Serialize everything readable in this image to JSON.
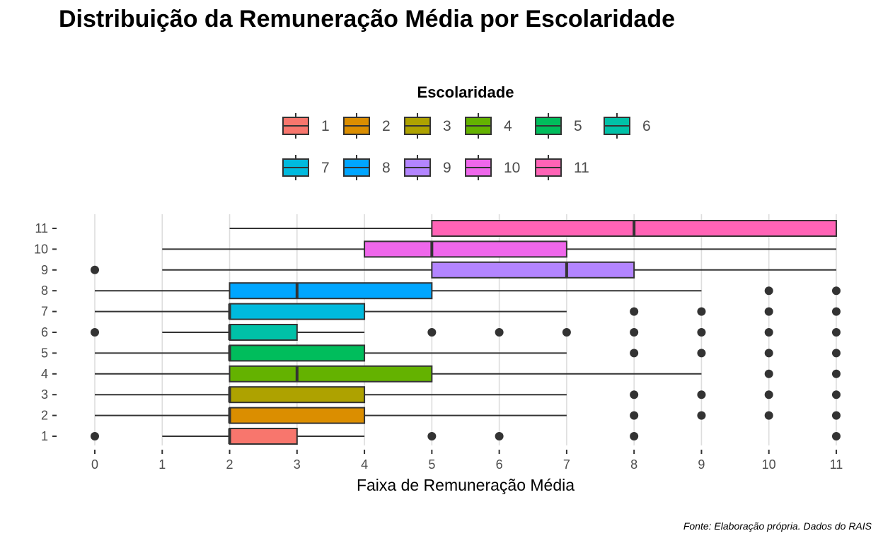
{
  "title": "Distribuição da Remuneração Média por Escolaridade",
  "caption": "Fonte: Elaboração própria. Dados do RAIS",
  "colors": {
    "1": "#F8766D",
    "2": "#DB8E00",
    "3": "#AEA200",
    "4": "#64B200",
    "5": "#00BD5C",
    "6": "#00C1A7",
    "7": "#00BADE",
    "8": "#00A6FF",
    "9": "#B385FF",
    "10": "#EF67EB",
    "11": "#FF63B6",
    "outline": "#333333",
    "grid": "#dddddd"
  },
  "chart_data": {
    "type": "boxplot",
    "orientation": "horizontal",
    "title": "Distribuição da Remuneração Média por Escolaridade",
    "xlabel": "Faixa de Remuneração Média",
    "ylabel": "",
    "xlim": [
      0,
      11
    ],
    "x_ticks": [
      "0",
      "1",
      "2",
      "3",
      "4",
      "5",
      "6",
      "7",
      "8",
      "9",
      "10",
      "11"
    ],
    "y_ticks": [
      "1",
      "2",
      "3",
      "4",
      "5",
      "6",
      "7",
      "8",
      "9",
      "10",
      "11"
    ],
    "grid": "vertical major lines",
    "legend": {
      "title": "Escolaridade",
      "position": "top",
      "entries": [
        "1",
        "2",
        "3",
        "4",
        "5",
        "6",
        "7",
        "8",
        "9",
        "10",
        "11"
      ]
    },
    "series": [
      {
        "name": "1",
        "whisker_low": 1,
        "q1": 2,
        "median": 2,
        "q3": 3,
        "whisker_high": 4,
        "outliers": [
          0,
          5,
          6,
          8,
          11
        ]
      },
      {
        "name": "2",
        "whisker_low": 0,
        "q1": 2,
        "median": 2,
        "q3": 4,
        "whisker_high": 7,
        "outliers": [
          8,
          9,
          10,
          11
        ]
      },
      {
        "name": "3",
        "whisker_low": 0,
        "q1": 2,
        "median": 2,
        "q3": 4,
        "whisker_high": 7,
        "outliers": [
          8,
          9,
          10,
          11
        ]
      },
      {
        "name": "4",
        "whisker_low": 0,
        "q1": 2,
        "median": 3,
        "q3": 5,
        "whisker_high": 9,
        "outliers": [
          10,
          11
        ]
      },
      {
        "name": "5",
        "whisker_low": 0,
        "q1": 2,
        "median": 2,
        "q3": 4,
        "whisker_high": 7,
        "outliers": [
          8,
          9,
          10,
          11
        ]
      },
      {
        "name": "6",
        "whisker_low": 1,
        "q1": 2,
        "median": 2,
        "q3": 3,
        "whisker_high": 4,
        "outliers": [
          0,
          5,
          6,
          7,
          8,
          9,
          10,
          11
        ]
      },
      {
        "name": "7",
        "whisker_low": 0,
        "q1": 2,
        "median": 2,
        "q3": 4,
        "whisker_high": 7,
        "outliers": [
          8,
          9,
          10,
          11
        ]
      },
      {
        "name": "8",
        "whisker_low": 0,
        "q1": 2,
        "median": 3,
        "q3": 5,
        "whisker_high": 9,
        "outliers": [
          10,
          11
        ]
      },
      {
        "name": "9",
        "whisker_low": 1,
        "q1": 5,
        "median": 7,
        "q3": 8,
        "whisker_high": 11,
        "outliers": [
          0
        ]
      },
      {
        "name": "10",
        "whisker_low": 1,
        "q1": 4,
        "median": 5,
        "q3": 7,
        "whisker_high": 11,
        "outliers": []
      },
      {
        "name": "11",
        "whisker_low": 2,
        "q1": 5,
        "median": 8,
        "q3": 11,
        "whisker_high": 11,
        "outliers": []
      }
    ]
  }
}
